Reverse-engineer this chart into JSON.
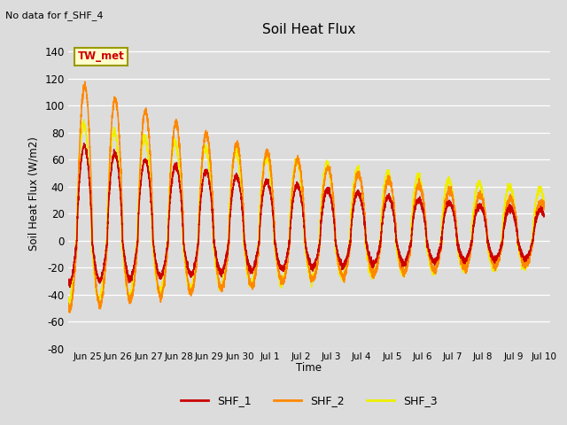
{
  "title": "Soil Heat Flux",
  "subtitle": "No data for f_SHF_4",
  "ylabel": "Soil Heat Flux (W/m2)",
  "xlabel": "Time",
  "ylim": [
    -80,
    150
  ],
  "yticks": [
    -80,
    -60,
    -40,
    -20,
    0,
    20,
    40,
    60,
    80,
    100,
    120,
    140
  ],
  "bg_color": "#dcdcdc",
  "annotation_text": "TW_met",
  "annotation_fg": "#cc0000",
  "annotation_bg": "#ffffcc",
  "annotation_border": "#999900",
  "colors": {
    "SHF_1": "#cc0000",
    "SHF_2": "#ff8800",
    "SHF_3": "#eeee00"
  },
  "xtick_labels": [
    "Jun 25",
    "Jun 26",
    "Jun 27",
    "Jun 28",
    "Jun 29",
    "Jun 30",
    "Jul 1",
    "Jul 2",
    "Jul 3",
    "Jul 4",
    "Jul 5",
    "Jul 6",
    "Jul 7",
    "Jul 8",
    "Jul 9",
    "Jul 10"
  ],
  "xtick_positions": [
    1,
    2,
    3,
    4,
    5,
    6,
    7,
    8,
    9,
    10,
    11,
    12,
    13,
    14,
    15,
    16
  ]
}
